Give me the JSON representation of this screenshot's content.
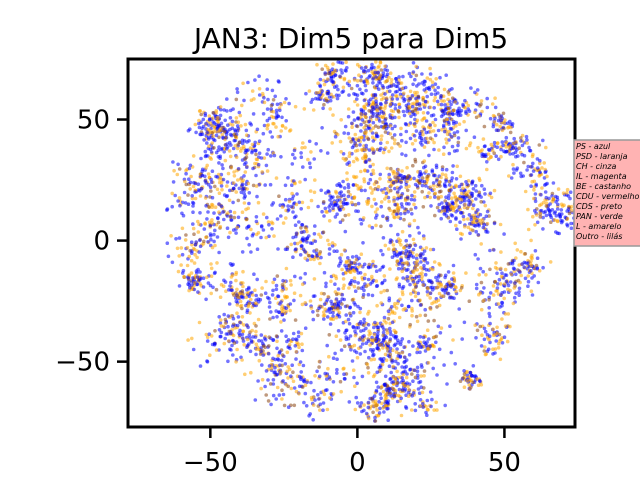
{
  "chart_data": {
    "type": "scatter",
    "title": "JAN3: Dim5 para Dim5",
    "xlabel": "",
    "ylabel": "",
    "xlim": [
      -78,
      74
    ],
    "ylim": [
      -77,
      75
    ],
    "x_ticks": [
      -50,
      0,
      50
    ],
    "y_ticks": [
      -50,
      0,
      50
    ],
    "x_tick_labels": [
      "−50",
      "0",
      "50"
    ],
    "y_tick_labels": [
      "−50",
      "0",
      "50"
    ],
    "grid": false,
    "legend_placement": "right, outside plot",
    "legend": [
      {
        "label": "PS - azul",
        "color": "#0000ff"
      },
      {
        "label": "PSD - laranja",
        "color": "#ffa500"
      },
      {
        "label": "CH - cinza",
        "color": "#808080"
      },
      {
        "label": "IL - magenta",
        "color": "#ff00ff"
      },
      {
        "label": "BE - castanho",
        "color": "#8b4513"
      },
      {
        "label": "CDU - vermelho",
        "color": "#ff0000"
      },
      {
        "label": "CDS - preto",
        "color": "#000000"
      },
      {
        "label": "PAN - verde",
        "color": "#008000"
      },
      {
        "label": "L - amarelo",
        "color": "#ffff00"
      },
      {
        "label": "Outro - lilás",
        "color": "#c8a2c8"
      }
    ],
    "point_cloud": {
      "shape": "disc",
      "center": [
        0,
        0
      ],
      "radius": 76,
      "dominant_series": [
        "PS - azul",
        "PSD - laranja"
      ],
      "colors": [
        "#0000ff",
        "#ffa500",
        "#8b4513"
      ]
    }
  }
}
